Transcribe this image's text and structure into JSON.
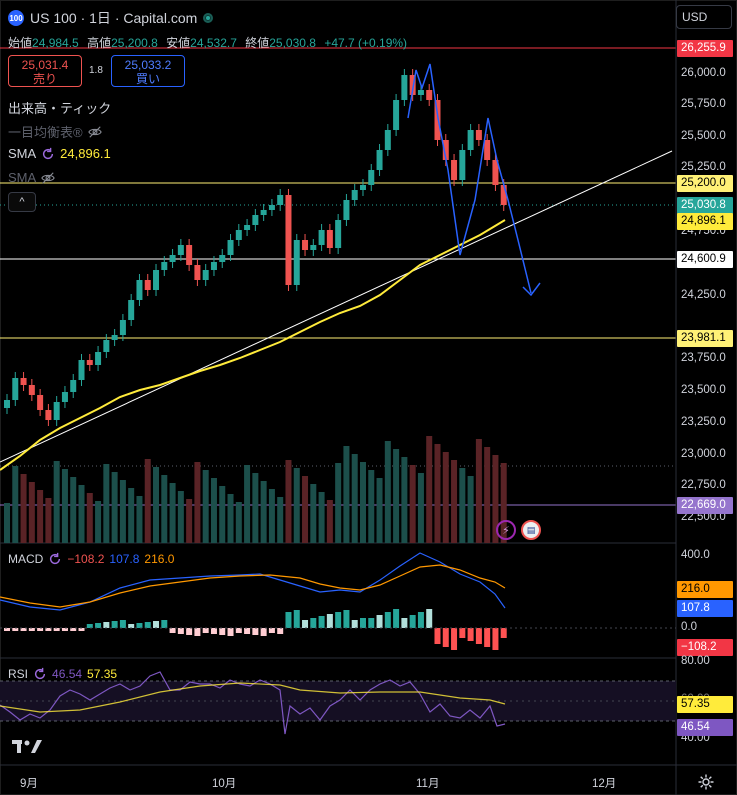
{
  "header": {
    "logo_text": "100",
    "symbol": "US 100 · 1日 · Capital.com",
    "currency": "USD",
    "ohlc": {
      "open_label": "始値",
      "open": "24,984.5",
      "high_label": "高値",
      "high": "25,200.8",
      "low_label": "安値",
      "low": "24,532.7",
      "close_label": "終値",
      "close": "25,030.8",
      "change": "+47.7 (+0.19%)"
    },
    "sell": {
      "price": "25,031.4",
      "label": "売り"
    },
    "spread": "1.8",
    "buy": {
      "price": "25,033.2",
      "label": "買い"
    }
  },
  "indicators": {
    "volume": "出来高・ティック",
    "ichimoku": "一目均衡表®",
    "sma1_name": "SMA",
    "sma1_value": "24,896.1",
    "sma2_name": "SMA",
    "collapse": "^"
  },
  "price_axis": {
    "ticks": [
      "26,000.0",
      "25,750.0",
      "25,500.0",
      "25,250.0",
      "24,750.0",
      "24,500.0",
      "24,250.0",
      "23,750.0",
      "23,500.0",
      "23,250.0",
      "23,000.0",
      "22,750.0",
      "22,500.0"
    ],
    "tags": [
      {
        "text": "26,255.9",
        "bg": "#f23645",
        "fg": "#ffffff"
      },
      {
        "text": "25,200.0",
        "bg": "#fff176",
        "fg": "#000000"
      },
      {
        "text": "25,030.8",
        "bg": "#26a69a",
        "fg": "#ffffff"
      },
      {
        "text": "24,896.1",
        "bg": "#ffeb3b",
        "fg": "#000000"
      },
      {
        "text": "24,600.9",
        "bg": "#ffffff",
        "fg": "#000000"
      },
      {
        "text": "23,981.1",
        "bg": "#fff176",
        "fg": "#000000"
      },
      {
        "text": "22,669.0",
        "bg": "#9575cd",
        "fg": "#ffffff"
      }
    ]
  },
  "macd": {
    "name": "MACD",
    "hist": "−108.2",
    "macd": "107.8",
    "signal": "216.0",
    "ticks": [
      "400.0",
      "0.0"
    ],
    "tags": [
      {
        "text": "216.0",
        "bg": "#ff9800",
        "fg": "#000000"
      },
      {
        "text": "107.8",
        "bg": "#2962ff",
        "fg": "#ffffff"
      },
      {
        "text": "−108.2",
        "bg": "#f23645",
        "fg": "#ffffff"
      }
    ]
  },
  "rsi": {
    "name": "RSI",
    "rsi": "46.54",
    "ma": "57.35",
    "ticks": [
      "80.00",
      "60.00",
      "40.00"
    ],
    "tags": [
      {
        "text": "57.35",
        "bg": "#ffeb3b",
        "fg": "#000000"
      },
      {
        "text": "46.54",
        "bg": "#7e57c2",
        "fg": "#ffffff"
      }
    ]
  },
  "time_axis": [
    "9月",
    "10月",
    "11月",
    "12月"
  ],
  "colors": {
    "up": "#26a69a",
    "down": "#ef5350",
    "sma": "#ffeb3b",
    "macd": "#2962ff",
    "signal": "#ff9800",
    "rsi": "#7e57c2"
  },
  "icons": [
    "tradingview-logo-icon",
    "eye-off-icon",
    "refresh-icon",
    "settings-icon",
    "lightning-icon",
    "us-flag-icon"
  ]
}
